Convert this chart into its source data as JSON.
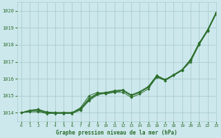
{
  "title": "Graphe pression niveau de la mer (hPa)",
  "bg_color": "#cce8ec",
  "grid_color": "#aacccc",
  "line_color": "#2d6e2d",
  "xlim": [
    -0.5,
    23
  ],
  "ylim": [
    1013.5,
    1020.5
  ],
  "xticks": [
    0,
    1,
    2,
    3,
    4,
    5,
    6,
    7,
    8,
    9,
    10,
    11,
    12,
    13,
    14,
    15,
    16,
    17,
    18,
    19,
    20,
    21,
    22,
    23
  ],
  "yticks": [
    1014,
    1015,
    1016,
    1017,
    1018,
    1019,
    1020
  ],
  "series": [
    [
      1014.0,
      1014.1,
      1014.2,
      1014.0,
      1014.0,
      1014.0,
      1014.0,
      1014.3,
      1015.0,
      1015.2,
      1015.1,
      1015.2,
      1015.2,
      1014.9,
      1015.1,
      1015.4,
      1016.1,
      1015.9,
      1016.2,
      1016.5,
      1017.0,
      1018.0,
      1018.8,
      1019.8
    ],
    [
      1014.0,
      1014.15,
      1014.2,
      1014.05,
      1014.0,
      1014.0,
      1014.0,
      1014.25,
      1014.85,
      1015.15,
      1015.2,
      1015.25,
      1015.3,
      1015.0,
      1015.2,
      1015.5,
      1016.15,
      1015.95,
      1016.2,
      1016.5,
      1017.1,
      1018.05,
      1018.85,
      1019.85
    ],
    [
      1014.0,
      1014.1,
      1014.1,
      1014.0,
      1014.0,
      1014.0,
      1014.0,
      1014.2,
      1014.75,
      1015.1,
      1015.2,
      1015.3,
      1015.35,
      1015.05,
      1015.25,
      1015.55,
      1016.2,
      1015.95,
      1016.25,
      1016.55,
      1017.15,
      1018.1,
      1018.9,
      1019.9
    ],
    [
      1014.0,
      1014.05,
      1014.05,
      1013.95,
      1013.95,
      1013.95,
      1013.95,
      1014.15,
      1014.7,
      1015.05,
      1015.15,
      1015.25,
      1015.3,
      1015.0,
      1015.2,
      1015.5,
      1016.1,
      1015.9,
      1016.2,
      1016.5,
      1017.1,
      1018.1,
      1018.8,
      1019.9
    ]
  ],
  "series_smooth": [
    1014.0,
    1014.1,
    1014.15,
    1013.98,
    1014.0,
    1014.0,
    1014.0,
    1014.2,
    1014.8,
    1015.1,
    1015.15,
    1015.25,
    1015.3,
    1015.0,
    1015.2,
    1015.5,
    1016.15,
    1015.95,
    1016.2,
    1016.5,
    1017.1,
    1018.05,
    1018.85,
    1019.85
  ]
}
